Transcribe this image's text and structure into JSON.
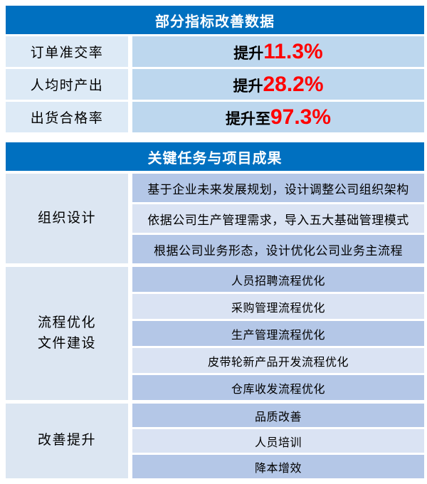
{
  "colors": {
    "header_bg": "#0070C0",
    "header_text": "#FFFFFF",
    "s1_left_bg": "#DDEAF6",
    "s1_right_bg": "#BDD7EE",
    "group_label_bg": "#DCE6F2",
    "row_dark_bg": "#B4C7E7",
    "row_light_bg": "#DAE3F3",
    "accent_red": "#FF0000",
    "text": "#000000"
  },
  "metrics_table": {
    "title": "部分指标改善数据",
    "rows": [
      {
        "label": "订单准交率",
        "prefix": "提升",
        "value": "11.3%"
      },
      {
        "label": "人均时产出",
        "prefix": "提升",
        "value": "28.2%"
      },
      {
        "label": "出货合格率",
        "prefix": "提升至",
        "value": "97.3%"
      }
    ]
  },
  "tasks_table": {
    "title": "关键任务与项目成果",
    "groups": [
      {
        "label": "组织设计",
        "items": [
          "基于企业未来发展规划，设计调整公司组织架构",
          "依据公司生产管理需求，导入五大基础管理模式",
          "根据公司业务形态，设计优化公司业务主流程"
        ]
      },
      {
        "label": "流程优化\n文件建设",
        "items": [
          "人员招聘流程优化",
          "采购管理流程优化",
          "生产管理流程优化",
          "皮带轮新产品开发流程优化",
          "仓库收发流程优化"
        ]
      },
      {
        "label": "改善提升",
        "items": [
          "品质改善",
          "人员培训",
          "降本增效"
        ]
      }
    ]
  }
}
